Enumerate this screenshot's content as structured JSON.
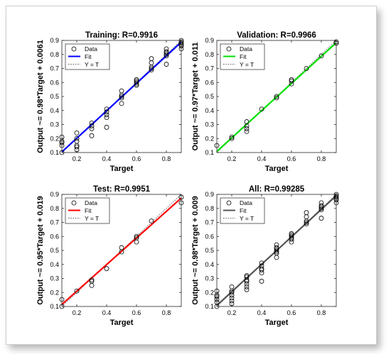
{
  "chart_data": [
    {
      "type": "scatter",
      "title": "Training: R=0.9916",
      "xlabel": "Target",
      "ylabel": "Output ~= 0.98*Target + 0.0061",
      "xlim": [
        0.1,
        0.9
      ],
      "ylim": [
        0.1,
        0.9
      ],
      "xticks": [
        "0.2",
        "0.4",
        "0.6",
        "0.8"
      ],
      "yticks": [
        "0.1",
        "0.2",
        "0.3",
        "0.4",
        "0.5",
        "0.6",
        "0.7",
        "0.8",
        "0.9"
      ],
      "fit": {
        "slope": 0.98,
        "intercept": 0.0061,
        "color": "#0000ff"
      },
      "legend": [
        "Data",
        "Fit",
        "Y = T"
      ],
      "legend_position": "top-left",
      "points": [
        [
          0.1,
          0.1
        ],
        [
          0.1,
          0.15
        ],
        [
          0.1,
          0.17
        ],
        [
          0.1,
          0.18
        ],
        [
          0.1,
          0.21
        ],
        [
          0.2,
          0.12
        ],
        [
          0.2,
          0.14
        ],
        [
          0.2,
          0.15
        ],
        [
          0.2,
          0.18
        ],
        [
          0.2,
          0.2
        ],
        [
          0.2,
          0.24
        ],
        [
          0.3,
          0.22
        ],
        [
          0.3,
          0.27
        ],
        [
          0.3,
          0.29
        ],
        [
          0.3,
          0.31
        ],
        [
          0.4,
          0.28
        ],
        [
          0.4,
          0.35
        ],
        [
          0.4,
          0.37
        ],
        [
          0.4,
          0.39
        ],
        [
          0.4,
          0.41
        ],
        [
          0.5,
          0.45
        ],
        [
          0.5,
          0.49
        ],
        [
          0.5,
          0.5
        ],
        [
          0.5,
          0.51
        ],
        [
          0.5,
          0.54
        ],
        [
          0.6,
          0.58
        ],
        [
          0.6,
          0.59
        ],
        [
          0.6,
          0.6
        ],
        [
          0.6,
          0.61
        ],
        [
          0.6,
          0.62
        ],
        [
          0.7,
          0.69
        ],
        [
          0.7,
          0.7
        ],
        [
          0.7,
          0.71
        ],
        [
          0.7,
          0.74
        ],
        [
          0.7,
          0.77
        ],
        [
          0.8,
          0.73
        ],
        [
          0.8,
          0.79
        ],
        [
          0.8,
          0.8
        ],
        [
          0.8,
          0.81
        ],
        [
          0.8,
          0.82
        ],
        [
          0.8,
          0.84
        ],
        [
          0.9,
          0.84
        ],
        [
          0.9,
          0.86
        ],
        [
          0.9,
          0.87
        ],
        [
          0.9,
          0.88
        ],
        [
          0.9,
          0.89
        ],
        [
          0.9,
          0.9
        ]
      ]
    },
    {
      "type": "scatter",
      "title": "Validation: R=0.9966",
      "xlabel": "Target",
      "ylabel": "Output ~= 0.97*Target + 0.011",
      "xlim": [
        0.1,
        0.9
      ],
      "ylim": [
        0.1,
        0.9
      ],
      "xticks": [
        "0.2",
        "0.4",
        "0.6",
        "0.8"
      ],
      "yticks": [
        "0.1",
        "0.2",
        "0.3",
        "0.4",
        "0.5",
        "0.6",
        "0.7",
        "0.8",
        "0.9"
      ],
      "fit": {
        "slope": 0.97,
        "intercept": 0.011,
        "color": "#00e000"
      },
      "legend": [
        "Data",
        "Fit",
        "Y = T"
      ],
      "legend_position": "top-left",
      "points": [
        [
          0.1,
          0.15
        ],
        [
          0.2,
          0.2
        ],
        [
          0.2,
          0.21
        ],
        [
          0.3,
          0.25
        ],
        [
          0.3,
          0.27
        ],
        [
          0.3,
          0.29
        ],
        [
          0.3,
          0.32
        ],
        [
          0.4,
          0.41
        ],
        [
          0.5,
          0.49
        ],
        [
          0.5,
          0.5
        ],
        [
          0.6,
          0.59
        ],
        [
          0.6,
          0.61
        ],
        [
          0.6,
          0.62
        ],
        [
          0.7,
          0.7
        ],
        [
          0.8,
          0.79
        ],
        [
          0.9,
          0.88
        ],
        [
          0.9,
          0.89
        ]
      ]
    },
    {
      "type": "scatter",
      "title": "Test: R=0.9951",
      "xlabel": "Target",
      "ylabel": "Output ~= 0.95*Target + 0.019",
      "xlim": [
        0.1,
        0.9
      ],
      "ylim": [
        0.1,
        0.9
      ],
      "xticks": [
        "0.2",
        "0.4",
        "0.6",
        "0.8"
      ],
      "yticks": [
        "0.1",
        "0.2",
        "0.3",
        "0.4",
        "0.5",
        "0.6",
        "0.7",
        "0.8",
        "0.9"
      ],
      "fit": {
        "slope": 0.95,
        "intercept": 0.019,
        "color": "#ff0000"
      },
      "legend": [
        "Data",
        "Fit",
        "Y = T"
      ],
      "legend_position": "top-left",
      "points": [
        [
          0.1,
          0.1
        ],
        [
          0.1,
          0.15
        ],
        [
          0.2,
          0.21
        ],
        [
          0.3,
          0.25
        ],
        [
          0.3,
          0.28
        ],
        [
          0.3,
          0.29
        ],
        [
          0.4,
          0.37
        ],
        [
          0.5,
          0.49
        ],
        [
          0.5,
          0.52
        ],
        [
          0.6,
          0.56
        ],
        [
          0.6,
          0.59
        ],
        [
          0.6,
          0.6
        ],
        [
          0.7,
          0.71
        ],
        [
          0.9,
          0.84
        ],
        [
          0.9,
          0.88
        ]
      ]
    },
    {
      "type": "scatter",
      "title": "All: R=0.99285",
      "xlabel": "Target",
      "ylabel": "Output ~= 0.98*Target + 0.009",
      "xlim": [
        0.1,
        0.9
      ],
      "ylim": [
        0.1,
        0.9
      ],
      "xticks": [
        "0.2",
        "0.4",
        "0.6",
        "0.8"
      ],
      "yticks": [
        "0.1",
        "0.2",
        "0.3",
        "0.4",
        "0.5",
        "0.6",
        "0.7",
        "0.8",
        "0.9"
      ],
      "fit": {
        "slope": 0.98,
        "intercept": 0.009,
        "color": "#555555"
      },
      "legend": [
        "Data",
        "Fit",
        "Y = T"
      ],
      "legend_position": "top-left",
      "points": [
        [
          0.1,
          0.1
        ],
        [
          0.1,
          0.13
        ],
        [
          0.1,
          0.15
        ],
        [
          0.1,
          0.17
        ],
        [
          0.1,
          0.18
        ],
        [
          0.1,
          0.21
        ],
        [
          0.2,
          0.12
        ],
        [
          0.2,
          0.14
        ],
        [
          0.2,
          0.16
        ],
        [
          0.2,
          0.18
        ],
        [
          0.2,
          0.2
        ],
        [
          0.2,
          0.21
        ],
        [
          0.2,
          0.24
        ],
        [
          0.3,
          0.22
        ],
        [
          0.3,
          0.24
        ],
        [
          0.3,
          0.26
        ],
        [
          0.3,
          0.28
        ],
        [
          0.3,
          0.29
        ],
        [
          0.3,
          0.31
        ],
        [
          0.3,
          0.32
        ],
        [
          0.4,
          0.28
        ],
        [
          0.4,
          0.34
        ],
        [
          0.4,
          0.36
        ],
        [
          0.4,
          0.37
        ],
        [
          0.4,
          0.39
        ],
        [
          0.4,
          0.41
        ],
        [
          0.5,
          0.45
        ],
        [
          0.5,
          0.48
        ],
        [
          0.5,
          0.49
        ],
        [
          0.5,
          0.5
        ],
        [
          0.5,
          0.51
        ],
        [
          0.5,
          0.52
        ],
        [
          0.5,
          0.54
        ],
        [
          0.6,
          0.56
        ],
        [
          0.6,
          0.58
        ],
        [
          0.6,
          0.59
        ],
        [
          0.6,
          0.6
        ],
        [
          0.6,
          0.61
        ],
        [
          0.6,
          0.62
        ],
        [
          0.7,
          0.69
        ],
        [
          0.7,
          0.7
        ],
        [
          0.7,
          0.71
        ],
        [
          0.7,
          0.74
        ],
        [
          0.7,
          0.77
        ],
        [
          0.8,
          0.73
        ],
        [
          0.8,
          0.79
        ],
        [
          0.8,
          0.8
        ],
        [
          0.8,
          0.81
        ],
        [
          0.8,
          0.82
        ],
        [
          0.8,
          0.84
        ],
        [
          0.9,
          0.84
        ],
        [
          0.9,
          0.86
        ],
        [
          0.9,
          0.87
        ],
        [
          0.9,
          0.88
        ],
        [
          0.9,
          0.89
        ],
        [
          0.9,
          0.9
        ]
      ]
    }
  ]
}
